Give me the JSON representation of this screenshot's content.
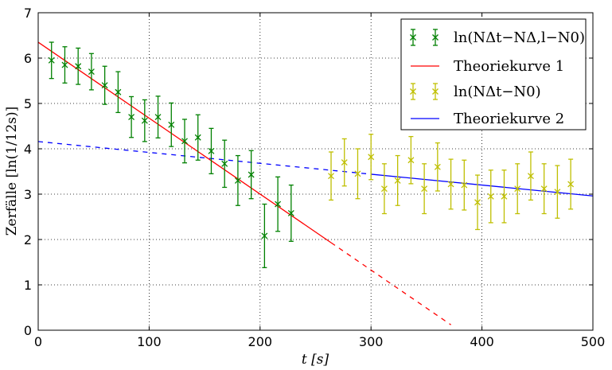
{
  "chart_data": {
    "type": "scatter",
    "xlabel": "t [s]",
    "ylabel": "Zerfälle [ln(1/12s)]",
    "xlim": [
      0,
      500
    ],
    "ylim": [
      0,
      7
    ],
    "x_ticks": [
      "0",
      "100",
      "200",
      "300",
      "400",
      "500"
    ],
    "y_ticks": [
      "0",
      "1",
      "2",
      "3",
      "4",
      "5",
      "6",
      "7"
    ],
    "grid": true,
    "legend_position": "top-right",
    "colors": {
      "series1": "#008000",
      "theory1": "#ff0000",
      "series2": "#bfbf00",
      "theory2": "#0000ff"
    },
    "series": [
      {
        "name": "ln(NΔt−NΔ,l−N0)",
        "kind": "errorbar",
        "marker": "x",
        "x": [
          12,
          24,
          36,
          48,
          60,
          72,
          84,
          96,
          108,
          120,
          132,
          144,
          156,
          168,
          180,
          192,
          204,
          216,
          228
        ],
        "y": [
          5.95,
          5.85,
          5.82,
          5.7,
          5.4,
          5.25,
          4.7,
          4.62,
          4.7,
          4.53,
          4.17,
          4.25,
          3.95,
          3.67,
          3.3,
          3.43,
          2.08,
          2.78,
          2.58
        ],
        "yerr": [
          0.4,
          0.4,
          0.4,
          0.4,
          0.42,
          0.45,
          0.45,
          0.46,
          0.46,
          0.48,
          0.48,
          0.5,
          0.5,
          0.52,
          0.55,
          0.53,
          0.7,
          0.6,
          0.62
        ]
      },
      {
        "name": "Theoriekurve 1",
        "kind": "line",
        "x": [
          0,
          264
        ],
        "y": [
          6.35,
          1.93
        ],
        "dashed_extension": {
          "x": [
            264,
            372
          ],
          "y": [
            1.93,
            0.12
          ]
        }
      },
      {
        "name": "ln(NΔt−N0)",
        "kind": "errorbar",
        "marker": "x",
        "x": [
          264,
          276,
          288,
          300,
          312,
          324,
          336,
          348,
          360,
          372,
          384,
          396,
          408,
          420,
          432,
          444,
          456,
          468,
          480
        ],
        "y": [
          3.4,
          3.7,
          3.45,
          3.82,
          3.12,
          3.3,
          3.75,
          3.12,
          3.6,
          3.22,
          3.2,
          2.82,
          2.95,
          2.95,
          3.12,
          3.4,
          3.12,
          3.05,
          3.22
        ],
        "yerr": [
          0.53,
          0.52,
          0.55,
          0.5,
          0.55,
          0.55,
          0.52,
          0.55,
          0.53,
          0.55,
          0.55,
          0.6,
          0.58,
          0.58,
          0.55,
          0.53,
          0.55,
          0.58,
          0.55
        ]
      },
      {
        "name": "Theoriekurve 2",
        "kind": "line",
        "x": [
          300,
          500
        ],
        "y": [
          3.44,
          2.96
        ],
        "dashed_extension": {
          "x": [
            0,
            300
          ],
          "y": [
            4.16,
            3.44
          ]
        }
      }
    ]
  }
}
